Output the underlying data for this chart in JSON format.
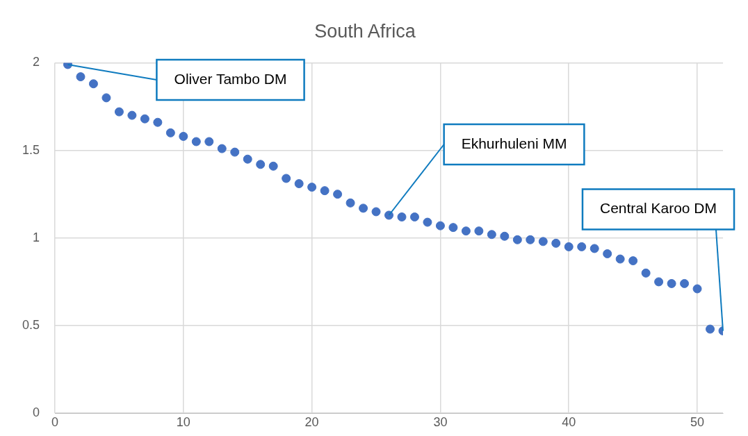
{
  "chart_data": {
    "type": "scatter",
    "title": "South Africa",
    "x": [
      1,
      2,
      3,
      4,
      5,
      6,
      7,
      8,
      9,
      10,
      11,
      12,
      13,
      14,
      15,
      16,
      17,
      18,
      19,
      20,
      21,
      22,
      23,
      24,
      25,
      26,
      27,
      28,
      29,
      30,
      31,
      32,
      33,
      34,
      35,
      36,
      37,
      38,
      39,
      40,
      41,
      42,
      43,
      44,
      45,
      46,
      47,
      48,
      49,
      50,
      51,
      52
    ],
    "series": [
      {
        "color": "#4472c4",
        "values": [
          1.99,
          1.92,
          1.88,
          1.8,
          1.72,
          1.7,
          1.68,
          1.66,
          1.6,
          1.58,
          1.55,
          1.55,
          1.51,
          1.49,
          1.45,
          1.42,
          1.41,
          1.34,
          1.31,
          1.29,
          1.27,
          1.25,
          1.2,
          1.17,
          1.15,
          1.13,
          1.12,
          1.12,
          1.09,
          1.07,
          1.06,
          1.04,
          1.04,
          1.02,
          1.01,
          0.99,
          0.99,
          0.98,
          0.97,
          0.95,
          0.95,
          0.94,
          0.91,
          0.88,
          0.87,
          0.8,
          0.75,
          0.74,
          0.74,
          0.71,
          0.48,
          0.47
        ]
      }
    ],
    "xlim": [
      0,
      52
    ],
    "xticks": [
      0,
      10,
      20,
      30,
      40,
      50
    ],
    "ylim": [
      0,
      2
    ],
    "yticks": [
      0,
      0.5,
      1,
      1.5,
      2
    ],
    "grid": true,
    "marker": "circle",
    "legend": false,
    "annotations": [
      {
        "text": "Oliver Tambo DM",
        "x": 1,
        "y": 1.99
      },
      {
        "text": "Ekhurhuleni MM",
        "x": 26,
        "y": 1.13
      },
      {
        "text": "Central Karoo DM",
        "x": 52,
        "y": 0.47
      }
    ]
  }
}
